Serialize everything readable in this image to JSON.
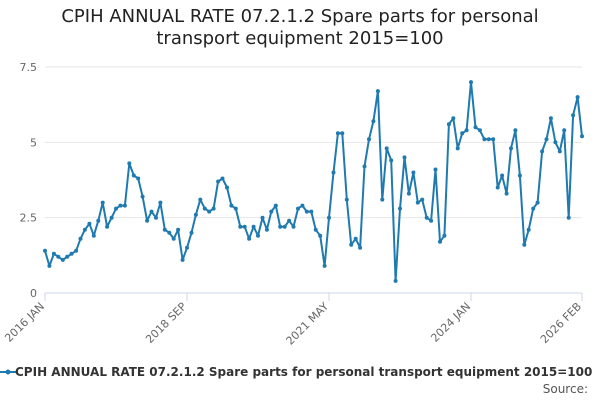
{
  "chart_data": {
    "type": "line",
    "title_lines": [
      "CPIH ANNUAL RATE 07.2.1.2 Spare parts for personal",
      "transport equipment 2015=100"
    ],
    "xlabel": "",
    "ylabel": "",
    "ylim": [
      0,
      7.5
    ],
    "y_ticks": [
      0,
      2.5,
      5,
      7.5
    ],
    "y_tick_labels": [
      "0",
      "2.5",
      "5",
      "7.5"
    ],
    "x_ticks": [
      {
        "label": "2016 JAN",
        "date": "2016-01"
      },
      {
        "label": "2018 SEP",
        "date": "2018-09"
      },
      {
        "label": "2021 MAY",
        "date": "2021-05"
      },
      {
        "label": "2024 JAN",
        "date": "2024-01"
      },
      {
        "label": "2026 FEB",
        "date": "2026-02"
      }
    ],
    "grid": true,
    "legend_position": "bottom",
    "series": [
      {
        "name": "CPIH ANNUAL RATE 07.2.1.2 Spare parts for personal transport equipment 2015=100",
        "color": "#1f7ab0",
        "points": [
          [
            "2016-01",
            1.4
          ],
          [
            "2016-02",
            0.9
          ],
          [
            "2016-03",
            1.3
          ],
          [
            "2016-04",
            1.2
          ],
          [
            "2016-05",
            1.1
          ],
          [
            "2016-06",
            1.2
          ],
          [
            "2016-07",
            1.3
          ],
          [
            "2016-08",
            1.4
          ],
          [
            "2016-09",
            1.8
          ],
          [
            "2016-10",
            2.1
          ],
          [
            "2016-11",
            2.3
          ],
          [
            "2016-12",
            1.9
          ],
          [
            "2017-01",
            2.4
          ],
          [
            "2017-02",
            3.0
          ],
          [
            "2017-03",
            2.2
          ],
          [
            "2017-04",
            2.5
          ],
          [
            "2017-05",
            2.8
          ],
          [
            "2017-06",
            2.9
          ],
          [
            "2017-07",
            2.9
          ],
          [
            "2017-08",
            4.3
          ],
          [
            "2017-09",
            3.9
          ],
          [
            "2017-10",
            3.8
          ],
          [
            "2017-11",
            3.2
          ],
          [
            "2017-12",
            2.4
          ],
          [
            "2018-01",
            2.7
          ],
          [
            "2018-02",
            2.5
          ],
          [
            "2018-03",
            3.0
          ],
          [
            "2018-04",
            2.1
          ],
          [
            "2018-05",
            2.0
          ],
          [
            "2018-06",
            1.8
          ],
          [
            "2018-07",
            2.1
          ],
          [
            "2018-08",
            1.1
          ],
          [
            "2018-09",
            1.5
          ],
          [
            "2018-10",
            2.0
          ],
          [
            "2018-11",
            2.6
          ],
          [
            "2018-12",
            3.1
          ],
          [
            "2019-01",
            2.8
          ],
          [
            "2019-02",
            2.7
          ],
          [
            "2019-03",
            2.8
          ],
          [
            "2019-04",
            3.7
          ],
          [
            "2019-05",
            3.8
          ],
          [
            "2019-06",
            3.5
          ],
          [
            "2019-07",
            2.9
          ],
          [
            "2019-08",
            2.8
          ],
          [
            "2019-09",
            2.2
          ],
          [
            "2019-10",
            2.2
          ],
          [
            "2019-11",
            1.8
          ],
          [
            "2019-12",
            2.2
          ],
          [
            "2020-01",
            1.9
          ],
          [
            "2020-02",
            2.5
          ],
          [
            "2020-03",
            2.1
          ],
          [
            "2020-04",
            2.7
          ],
          [
            "2020-05",
            2.9
          ],
          [
            "2020-06",
            2.2
          ],
          [
            "2020-07",
            2.2
          ],
          [
            "2020-08",
            2.4
          ],
          [
            "2020-09",
            2.2
          ],
          [
            "2020-10",
            2.8
          ],
          [
            "2020-11",
            2.9
          ],
          [
            "2020-12",
            2.7
          ],
          [
            "2021-01",
            2.7
          ],
          [
            "2021-02",
            2.1
          ],
          [
            "2021-03",
            1.9
          ],
          [
            "2021-04",
            0.9
          ],
          [
            "2021-05",
            2.5
          ],
          [
            "2021-06",
            4.0
          ],
          [
            "2021-07",
            5.3
          ],
          [
            "2021-08",
            5.3
          ],
          [
            "2021-09",
            3.1
          ],
          [
            "2021-10",
            1.6
          ],
          [
            "2021-11",
            1.8
          ],
          [
            "2021-12",
            1.5
          ],
          [
            "2022-01",
            4.2
          ],
          [
            "2022-02",
            5.1
          ],
          [
            "2022-03",
            5.7
          ],
          [
            "2022-04",
            6.7
          ],
          [
            "2022-05",
            3.1
          ],
          [
            "2022-06",
            4.8
          ],
          [
            "2022-07",
            4.4
          ],
          [
            "2022-08",
            0.4
          ],
          [
            "2022-09",
            2.8
          ],
          [
            "2022-10",
            4.5
          ],
          [
            "2022-11",
            3.3
          ],
          [
            "2022-12",
            4.0
          ],
          [
            "2023-01",
            3.0
          ],
          [
            "2023-02",
            3.1
          ],
          [
            "2023-03",
            2.5
          ],
          [
            "2023-04",
            2.4
          ],
          [
            "2023-05",
            4.1
          ],
          [
            "2023-06",
            1.7
          ],
          [
            "2023-07",
            1.9
          ],
          [
            "2023-08",
            5.6
          ],
          [
            "2023-09",
            5.8
          ],
          [
            "2023-10",
            4.8
          ],
          [
            "2023-11",
            5.3
          ],
          [
            "2023-12",
            5.4
          ],
          [
            "2024-01",
            7.0
          ],
          [
            "2024-02",
            5.5
          ],
          [
            "2024-03",
            5.4
          ],
          [
            "2024-04",
            5.1
          ],
          [
            "2024-05",
            5.1
          ],
          [
            "2024-06",
            5.1
          ],
          [
            "2024-07",
            3.5
          ],
          [
            "2024-08",
            3.9
          ],
          [
            "2024-09",
            3.3
          ],
          [
            "2024-10",
            4.8
          ],
          [
            "2024-11",
            5.4
          ],
          [
            "2024-12",
            3.9
          ],
          [
            "2025-01",
            1.6
          ],
          [
            "2025-02",
            2.1
          ],
          [
            "2025-03",
            2.8
          ],
          [
            "2025-04",
            3.0
          ],
          [
            "2025-05",
            4.7
          ],
          [
            "2025-06",
            5.1
          ],
          [
            "2025-07",
            5.8
          ],
          [
            "2025-08",
            5.0
          ],
          [
            "2025-09",
            4.7
          ],
          [
            "2025-10",
            5.4
          ],
          [
            "2025-11",
            2.5
          ],
          [
            "2025-12",
            5.9
          ],
          [
            "2026-01",
            6.5
          ],
          [
            "2026-02",
            5.2
          ]
        ]
      }
    ]
  },
  "footer": {
    "source_label": "Source:"
  }
}
